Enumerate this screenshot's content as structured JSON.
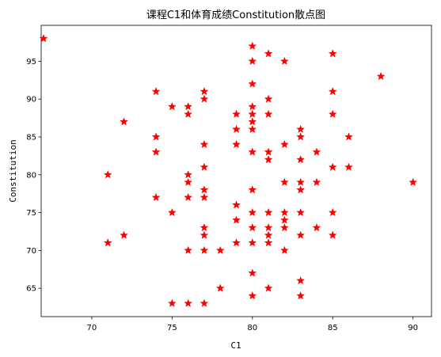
{
  "chart_data": {
    "type": "scatter",
    "title": "课程C1和体育成绩Constitution散点图",
    "xlabel": "C1",
    "ylabel": "Constitution",
    "xlim": [
      66.85,
      91.15
    ],
    "ylim": [
      61.25,
      99.75
    ],
    "xticks": [
      70,
      75,
      80,
      85,
      90
    ],
    "yticks": [
      65,
      70,
      75,
      80,
      85,
      90,
      95
    ],
    "grid": false,
    "marker": "star",
    "marker_color": "#ff0000",
    "points": [
      [
        67,
        98
      ],
      [
        71,
        80
      ],
      [
        71,
        71
      ],
      [
        72,
        87
      ],
      [
        72,
        72
      ],
      [
        74,
        91
      ],
      [
        74,
        85
      ],
      [
        74,
        83
      ],
      [
        74,
        77
      ],
      [
        75,
        89
      ],
      [
        75,
        75
      ],
      [
        75,
        63
      ],
      [
        76,
        89
      ],
      [
        76,
        88
      ],
      [
        76,
        80
      ],
      [
        76,
        79
      ],
      [
        76,
        77
      ],
      [
        76,
        70
      ],
      [
        76,
        63
      ],
      [
        77,
        91
      ],
      [
        77,
        90
      ],
      [
        77,
        84
      ],
      [
        77,
        81
      ],
      [
        77,
        78
      ],
      [
        77,
        77
      ],
      [
        77,
        73
      ],
      [
        77,
        72
      ],
      [
        77,
        70
      ],
      [
        77,
        63
      ],
      [
        78,
        70
      ],
      [
        78,
        65
      ],
      [
        79,
        88
      ],
      [
        79,
        86
      ],
      [
        79,
        84
      ],
      [
        79,
        76
      ],
      [
        79,
        74
      ],
      [
        79,
        71
      ],
      [
        80,
        97
      ],
      [
        80,
        95
      ],
      [
        80,
        92
      ],
      [
        80,
        89
      ],
      [
        80,
        88
      ],
      [
        80,
        87
      ],
      [
        80,
        86
      ],
      [
        80,
        83
      ],
      [
        80,
        78
      ],
      [
        80,
        75
      ],
      [
        80,
        73
      ],
      [
        80,
        71
      ],
      [
        80,
        67
      ],
      [
        80,
        64
      ],
      [
        81,
        96
      ],
      [
        81,
        90
      ],
      [
        81,
        88
      ],
      [
        81,
        83
      ],
      [
        81,
        82
      ],
      [
        81,
        75
      ],
      [
        81,
        73
      ],
      [
        81,
        72
      ],
      [
        81,
        71
      ],
      [
        81,
        65
      ],
      [
        82,
        95
      ],
      [
        82,
        84
      ],
      [
        82,
        79
      ],
      [
        82,
        75
      ],
      [
        82,
        74
      ],
      [
        82,
        73
      ],
      [
        82,
        70
      ],
      [
        83,
        86
      ],
      [
        83,
        85
      ],
      [
        83,
        82
      ],
      [
        83,
        79
      ],
      [
        83,
        78
      ],
      [
        83,
        75
      ],
      [
        83,
        72
      ],
      [
        83,
        66
      ],
      [
        83,
        64
      ],
      [
        84,
        83
      ],
      [
        84,
        79
      ],
      [
        84,
        73
      ],
      [
        85,
        96
      ],
      [
        85,
        91
      ],
      [
        85,
        88
      ],
      [
        85,
        81
      ],
      [
        85,
        75
      ],
      [
        85,
        72
      ],
      [
        86,
        85
      ],
      [
        86,
        81
      ],
      [
        88,
        93
      ],
      [
        90,
        79
      ]
    ]
  }
}
